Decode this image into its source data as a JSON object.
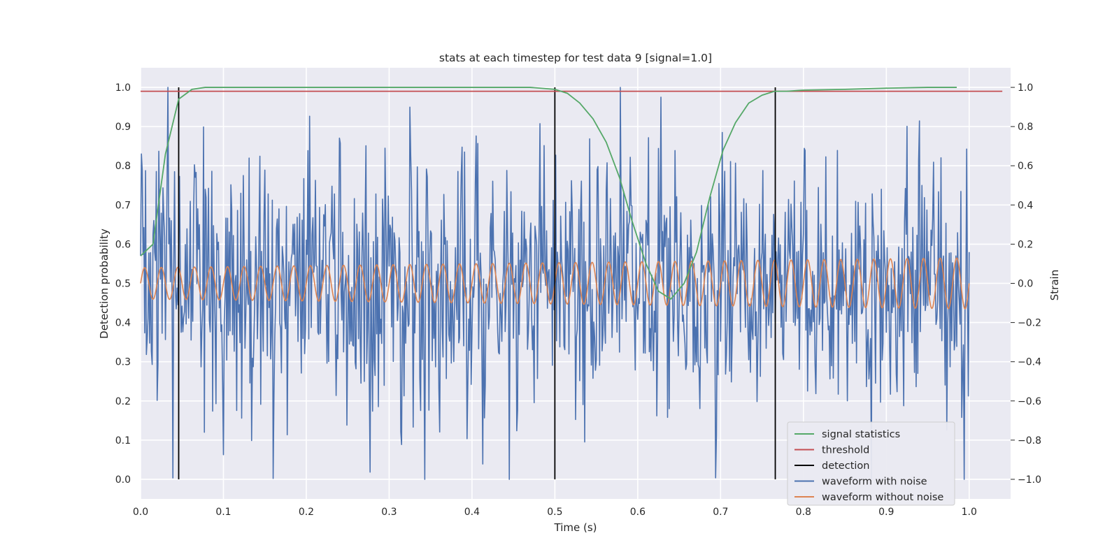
{
  "chart_data": {
    "type": "line",
    "title": "stats at each timestep for test data 9 [signal=1.0]",
    "xlabel": "Time (s)",
    "ylabel": "Detection probability",
    "y2label": "Strain",
    "xlim": [
      0.0,
      1.05
    ],
    "ylim": [
      -0.05,
      1.05
    ],
    "y2lim": [
      -1.1,
      1.1
    ],
    "xticks": [
      "0.0",
      "0.1",
      "0.2",
      "0.3",
      "0.4",
      "0.5",
      "0.6",
      "0.7",
      "0.8",
      "0.9",
      "1.0"
    ],
    "yticks": [
      "0.0",
      "0.1",
      "0.2",
      "0.3",
      "0.4",
      "0.5",
      "0.6",
      "0.7",
      "0.8",
      "0.9",
      "1.0"
    ],
    "y2ticks": [
      "−1.0",
      "−0.8",
      "−0.6",
      "−0.4",
      "−0.2",
      "0.0",
      "0.2",
      "0.4",
      "0.6",
      "0.8",
      "1.0"
    ],
    "grid": true,
    "legend_position": "lower-right",
    "series": [
      {
        "name": "signal statistics",
        "color": "#55a868",
        "axis": "left",
        "x": [
          0.0,
          0.015,
          0.03,
          0.046,
          0.062,
          0.078,
          0.1,
          0.2,
          0.3,
          0.4,
          0.47,
          0.5,
          0.515,
          0.53,
          0.546,
          0.562,
          0.578,
          0.593,
          0.61,
          0.625,
          0.64,
          0.656,
          0.671,
          0.687,
          0.703,
          0.718,
          0.734,
          0.75,
          0.765,
          0.78,
          0.8,
          0.85,
          0.9,
          0.95,
          0.985
        ],
        "y": [
          0.57,
          0.6,
          0.83,
          0.97,
          0.995,
          1.0,
          1.0,
          1.0,
          1.0,
          1.0,
          1.0,
          0.995,
          0.985,
          0.96,
          0.92,
          0.86,
          0.77,
          0.66,
          0.55,
          0.48,
          0.46,
          0.5,
          0.58,
          0.72,
          0.84,
          0.91,
          0.96,
          0.98,
          0.99,
          0.99,
          0.993,
          0.995,
          0.998,
          1.0,
          1.0
        ]
      },
      {
        "name": "threshold",
        "color": "#c44e52",
        "axis": "left",
        "x": [
          0.0,
          1.04
        ],
        "y": [
          0.99,
          0.99
        ]
      },
      {
        "name": "detection",
        "color": "#000000",
        "axis": "left",
        "x_positions": [
          0.046,
          0.5,
          0.766
        ],
        "y_range": [
          0.0,
          1.0
        ]
      },
      {
        "name": "waveform with noise",
        "color": "#4c72b0",
        "axis": "right",
        "x_range": [
          0.0,
          1.0
        ],
        "samples": 1000,
        "amplitude_range": [
          -1.0,
          1.0
        ]
      },
      {
        "name": "waveform without noise",
        "color": "#dd8452",
        "axis": "right",
        "x_range": [
          0.0,
          1.0
        ],
        "cycles": 50,
        "amplitude_start": 0.08,
        "amplitude_end": 0.13
      }
    ]
  }
}
